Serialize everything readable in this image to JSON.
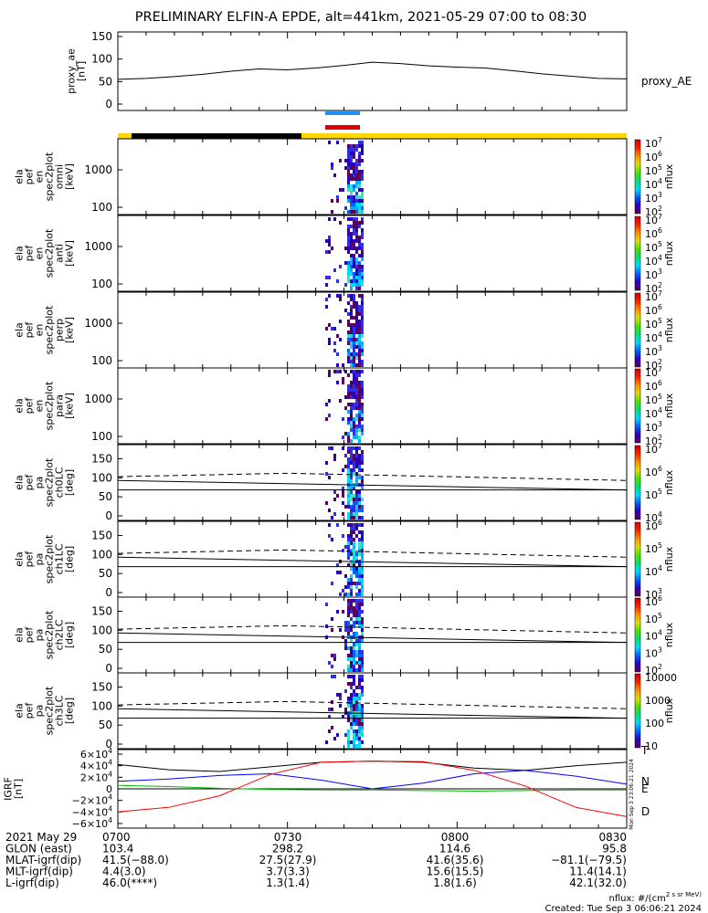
{
  "title": "PRELIMINARY ELFIN-A EPDE, alt=441km, 2021-05-29 07:00 to 08:30",
  "chart_data": [
    {
      "type": "line",
      "name": "proxy_ae",
      "ylabel_lines": [
        "proxy_ae",
        "[nT]"
      ],
      "legend": "proxy_AE",
      "ylim": [
        0,
        150
      ],
      "yticks": [
        "150",
        "100",
        "50",
        "0"
      ],
      "x_minutes": [
        0,
        5,
        10,
        15,
        20,
        25,
        30,
        35,
        40,
        45,
        50,
        55,
        60,
        65,
        70,
        75,
        80,
        85,
        90
      ],
      "values": [
        55,
        57,
        61,
        66,
        73,
        78,
        76,
        80,
        86,
        93,
        90,
        85,
        82,
        80,
        74,
        67,
        62,
        57,
        56
      ]
    },
    {
      "type": "heatmap",
      "name": "omni",
      "ylabel_lines": [
        "ela",
        "pef",
        "en",
        "spec2plot",
        "omni",
        "[keV]"
      ],
      "yticks": [
        "1000",
        "100"
      ],
      "cbar_ticks": [
        "10^7",
        "10^6",
        "10^5",
        "10^4",
        "10^3",
        "10^2"
      ],
      "cbar_label": "nflux"
    },
    {
      "type": "heatmap",
      "name": "anti",
      "ylabel_lines": [
        "ela",
        "pef",
        "en",
        "spec2plot",
        "anti",
        "[keV]"
      ],
      "yticks": [
        "1000",
        "100"
      ],
      "cbar_ticks": [
        "10^7",
        "10^6",
        "10^5",
        "10^4",
        "10^3",
        "10^2"
      ],
      "cbar_label": "nflux"
    },
    {
      "type": "heatmap",
      "name": "perp",
      "ylabel_lines": [
        "ela",
        "pef",
        "en",
        "spec2plot",
        "perp",
        "[keV]"
      ],
      "yticks": [
        "1000",
        "100"
      ],
      "cbar_ticks": [
        "10^7",
        "10^6",
        "10^5",
        "10^4",
        "10^3",
        "10^2"
      ],
      "cbar_label": "nflux"
    },
    {
      "type": "heatmap",
      "name": "para",
      "ylabel_lines": [
        "ela",
        "pef",
        "en",
        "spec2plot",
        "para",
        "[keV]"
      ],
      "yticks": [
        "1000",
        "100"
      ],
      "cbar_ticks": [
        "10^7",
        "10^6",
        "10^5",
        "10^4",
        "10^3",
        "10^2"
      ],
      "cbar_label": "nflux"
    },
    {
      "type": "heatmap",
      "name": "ch0LC",
      "ylabel_lines": [
        "ela",
        "pef",
        "pa",
        "spec2plot",
        "ch0LC",
        "[deg]"
      ],
      "ylim": [
        0,
        180
      ],
      "yticks": [
        "150",
        "100",
        "50",
        "0"
      ],
      "cbar_ticks": [
        "10^7",
        "10^6",
        "10^5",
        "10^4"
      ],
      "cbar_label": "nflux",
      "lc_solid": [
        93,
        68
      ],
      "lc_dashed": [
        103,
        112,
        93
      ]
    },
    {
      "type": "heatmap",
      "name": "ch1LC",
      "ylabel_lines": [
        "ela",
        "pef",
        "pa",
        "spec2plot",
        "ch1LC",
        "[deg]"
      ],
      "ylim": [
        0,
        180
      ],
      "yticks": [
        "150",
        "100",
        "50",
        "0"
      ],
      "cbar_ticks": [
        "10^6",
        "10^5",
        "10^4",
        "10^3"
      ],
      "cbar_label": "nflux",
      "lc_solid": [
        93,
        68
      ],
      "lc_dashed": [
        103,
        112,
        93
      ]
    },
    {
      "type": "heatmap",
      "name": "ch2LC",
      "ylabel_lines": [
        "ela",
        "pef",
        "pa",
        "spec2plot",
        "ch2LC",
        "[deg]"
      ],
      "ylim": [
        0,
        180
      ],
      "yticks": [
        "150",
        "100",
        "50",
        "0"
      ],
      "cbar_ticks": [
        "10^6",
        "10^5",
        "10^4",
        "10^3",
        "10^2"
      ],
      "cbar_label": "nflux",
      "lc_solid": [
        93,
        68
      ],
      "lc_dashed": [
        103,
        112,
        93
      ]
    },
    {
      "type": "heatmap",
      "name": "ch3LC",
      "ylabel_lines": [
        "ela",
        "pef",
        "pa",
        "spec2plot",
        "ch3LC",
        "[deg]"
      ],
      "ylim": [
        0,
        180
      ],
      "yticks": [
        "150",
        "100",
        "50",
        "0"
      ],
      "cbar_ticks": [
        "10000",
        "1000",
        "100",
        "10"
      ],
      "cbar_label": "nflux",
      "lc_solid": [
        93,
        68
      ],
      "lc_dashed": [
        103,
        112,
        93
      ]
    },
    {
      "type": "line",
      "name": "IGRF",
      "ylabel_lines": [
        "IGRF",
        "[nT]"
      ],
      "yticks": [
        "6×10^4",
        "4×10^4",
        "2×10^4",
        "0",
        "−2×10^4",
        "−4×10^4",
        "−6×10^4"
      ],
      "ylim": [
        -60000,
        60000
      ],
      "x_minutes": [
        0,
        9,
        18,
        27,
        36,
        45,
        54,
        63,
        72,
        81,
        90
      ],
      "series": [
        {
          "name": "T",
          "color": "#000000",
          "values": [
            42000,
            33000,
            30000,
            38000,
            46000,
            48000,
            46000,
            36000,
            32000,
            40000,
            46000
          ]
        },
        {
          "name": "N",
          "color": "#0000ff",
          "values": [
            13000,
            17000,
            23000,
            26000,
            15000,
            0,
            10000,
            26000,
            32000,
            22000,
            8000
          ]
        },
        {
          "name": "E",
          "color": "#00bb00",
          "values": [
            6000,
            4000,
            1000,
            -1000,
            -2000,
            -2000,
            -3000,
            -4000,
            -3000,
            -2000,
            -2000
          ]
        },
        {
          "name": "D",
          "color": "#ff0000",
          "values": [
            -40000,
            -32000,
            -12000,
            25000,
            46000,
            48000,
            47000,
            32000,
            5000,
            -32000,
            -48000
          ]
        }
      ]
    }
  ],
  "colorbar_colors": [
    "#5a005a",
    "#2a00c0",
    "#0060ff",
    "#00d8ff",
    "#00e070",
    "#50e000",
    "#d8e000",
    "#ff9000",
    "#ff2000",
    "#d00000"
  ],
  "time_ticks": [
    "0700",
    "0730",
    "0800",
    "0830"
  ],
  "footer": {
    "rows": [
      {
        "label": "2021 May 29",
        "values": [
          "0700",
          "0730",
          "0800",
          "0830"
        ]
      },
      {
        "label": "GLON (east)",
        "values": [
          "103.4",
          "298.2",
          "114.6",
          "95.8"
        ]
      },
      {
        "label": "MLAT-igrf(dip)",
        "values": [
          "41.5(−88.0)",
          "27.5(27.9)",
          "41.6(35.6)",
          "−81.1(−79.5)"
        ]
      },
      {
        "label": "MLT-igrf(dip)",
        "values": [
          "4.4(3.0)",
          "3.7(3.3)",
          "15.6(15.5)",
          "11.4(14.1)"
        ]
      },
      {
        "label": "L-igrf(dip)",
        "values": [
          "46.0(****)",
          "1.3(1.4)",
          "1.8(1.6)",
          "42.1(32.0)"
        ]
      }
    ],
    "units_note": "nflux: #/(cm^2 s sr MeV)",
    "created": "Created: Tue Sep  3 06:06:21 2024",
    "side_stamp": "Mon Sep  3 23:06:21 2024"
  }
}
